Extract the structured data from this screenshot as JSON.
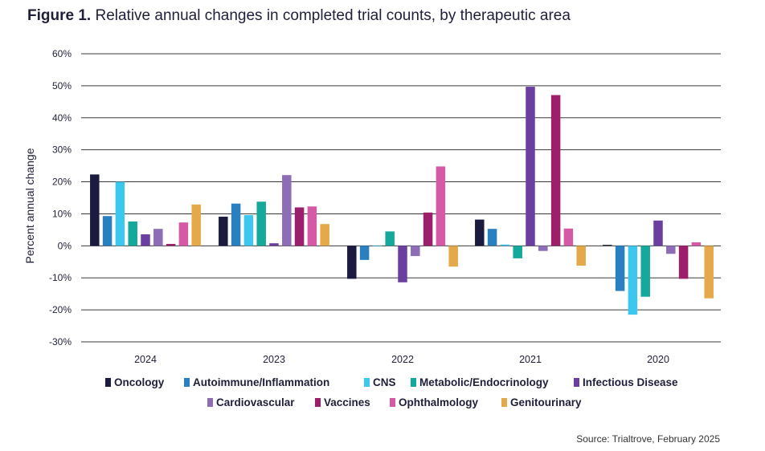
{
  "title": {
    "lead": "Figure 1.",
    "text": " Relative annual changes in completed trial counts, by therapeutic area"
  },
  "source": "Source: Trialtrove, February 2025",
  "chart_data": {
    "type": "bar",
    "ylabel": "Percent annual change",
    "xlabel": "",
    "ylim": [
      -30,
      60
    ],
    "yticks": [
      60,
      50,
      40,
      30,
      20,
      10,
      0,
      -10,
      -20,
      -30
    ],
    "ytick_labels": [
      "60%",
      "50%",
      "40%",
      "30%",
      "20%",
      "10%",
      "0%",
      "-10%",
      "-20%",
      "-30%"
    ],
    "grid": true,
    "legend_position": "bottom",
    "categories": [
      "2024",
      "2023",
      "2022",
      "2021",
      "2020"
    ],
    "series": [
      {
        "name": "Oncology",
        "color": "#1a1b3f",
        "values": [
          22.3,
          9.1,
          -10.3,
          8.2,
          0.3
        ]
      },
      {
        "name": "Autoimmune/Inflammation",
        "color": "#2a7fc1",
        "values": [
          9.3,
          13.2,
          -4.4,
          5.3,
          -14.1
        ]
      },
      {
        "name": "CNS",
        "color": "#3cc8ee",
        "values": [
          20.0,
          9.6,
          0.0,
          0.4,
          -21.5
        ]
      },
      {
        "name": "Metabolic/Endocrinology",
        "color": "#14a99a",
        "values": [
          7.6,
          13.8,
          4.5,
          -3.9,
          -15.9
        ]
      },
      {
        "name": "Infectious Disease",
        "color": "#6b3fa0",
        "values": [
          3.6,
          0.8,
          -11.4,
          49.7,
          7.9
        ]
      },
      {
        "name": "Cardiovascular",
        "color": "#8d6db6",
        "values": [
          5.3,
          22.1,
          -3.2,
          -1.6,
          -2.5
        ]
      },
      {
        "name": "Vaccines",
        "color": "#9c1f6b",
        "values": [
          0.6,
          12.0,
          10.4,
          47.1,
          -10.3
        ]
      },
      {
        "name": "Ophthalmology",
        "color": "#d45aa5",
        "values": [
          7.3,
          12.3,
          24.8,
          5.4,
          1.1
        ]
      },
      {
        "name": "Genitourinary",
        "color": "#e3a94a",
        "values": [
          12.9,
          6.8,
          -6.5,
          -6.2,
          -16.4
        ]
      }
    ]
  }
}
